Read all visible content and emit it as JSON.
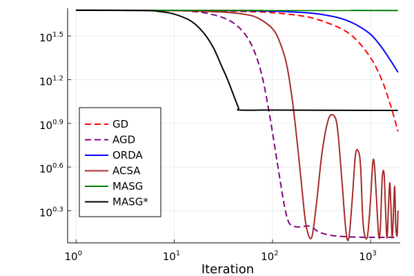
{
  "chart_data": {
    "type": "line",
    "title": "",
    "xlabel": "Iteration",
    "ylabel": "",
    "xscale": "log",
    "yscale": "log",
    "xlim": [
      0.82,
      2000
    ],
    "ylim": [
      1.2,
      49.0
    ],
    "grid": true,
    "legend_position": "bottom-left",
    "x_ticks": [
      {
        "base": "10",
        "exp": "0",
        "value": 1
      },
      {
        "base": "10",
        "exp": "1",
        "value": 10
      },
      {
        "base": "10",
        "exp": "2",
        "value": 100
      },
      {
        "base": "10",
        "exp": "3",
        "value": 1000
      }
    ],
    "y_ticks": [
      {
        "base": "10",
        "exp": "0.3",
        "value": 1.995
      },
      {
        "base": "10",
        "exp": "0.6",
        "value": 3.981
      },
      {
        "base": "10",
        "exp": "0.9",
        "value": 7.943
      },
      {
        "base": "10",
        "exp": "1.2",
        "value": 15.85
      },
      {
        "base": "10",
        "exp": "1.5",
        "value": 31.62
      }
    ],
    "series": [
      {
        "name": "GD",
        "color": "#ff0000",
        "dash": "dashed",
        "x": [
          1,
          10,
          50,
          100,
          200,
          300,
          500,
          700,
          1000,
          1300,
          1600,
          1900
        ],
        "y": [
          47.5,
          47.3,
          46.6,
          45.7,
          43.4,
          40.7,
          35.5,
          30.2,
          22.4,
          15.8,
          10.5,
          7.0
        ]
      },
      {
        "name": "AGD",
        "color": "#800080",
        "dash": "dashed",
        "x": [
          1,
          10,
          15,
          20,
          30,
          40,
          50,
          60,
          70,
          80,
          90,
          100,
          110,
          120,
          130,
          140,
          150,
          170,
          200,
          230,
          260,
          300,
          400,
          600,
          1000,
          1900
        ],
        "y": [
          47.5,
          47.2,
          46.6,
          45.7,
          42.7,
          38.9,
          33.9,
          28.2,
          21.9,
          15.8,
          10.5,
          6.9,
          4.6,
          3.2,
          2.3,
          1.82,
          1.62,
          1.55,
          1.55,
          1.57,
          1.52,
          1.42,
          1.35,
          1.32,
          1.31,
          1.31
        ]
      },
      {
        "name": "ORDA",
        "color": "#0000ff",
        "dash": "solid",
        "x": [
          1,
          30,
          100,
          200,
          300,
          500,
          700,
          1000,
          1300,
          1600,
          1900
        ],
        "y": [
          47.5,
          47.3,
          46.8,
          45.9,
          44.7,
          41.7,
          38.0,
          32.4,
          26.3,
          21.4,
          17.8
        ]
      },
      {
        "name": "ACSA",
        "color": "#a52a2a",
        "dash": "solid",
        "x": [
          1,
          10,
          30,
          50,
          70,
          100,
          120,
          140,
          160,
          180,
          200,
          220,
          250,
          280,
          320,
          370,
          420,
          460,
          510,
          560,
          600,
          650,
          700,
          750,
          790,
          840,
          920,
          990,
          1050,
          1090,
          1140,
          1210,
          1260,
          1310,
          1370,
          1420,
          1470,
          1530,
          1570,
          1610,
          1660,
          1720,
          1760,
          1800,
          1860,
          1900
        ],
        "y": [
          47.5,
          47.2,
          46.2,
          44.7,
          42.2,
          35.5,
          28.2,
          19.9,
          11.2,
          5.6,
          2.8,
          1.58,
          1.3,
          2.2,
          5.0,
          8.4,
          9.0,
          7.3,
          3.2,
          1.45,
          1.3,
          2.4,
          4.8,
          5.1,
          4.0,
          1.6,
          1.3,
          2.2,
          4.2,
          4.2,
          2.6,
          1.32,
          1.6,
          3.3,
          3.6,
          2.0,
          1.3,
          2.4,
          3.1,
          2.1,
          1.3,
          2.2,
          2.9,
          1.6,
          1.35,
          2.0
        ]
      },
      {
        "name": "MASG",
        "color": "#008000",
        "dash": "solid",
        "x": [
          1,
          1900
        ],
        "y": [
          47.5,
          47.3
        ]
      },
      {
        "name": "MASG*",
        "color": "#000000",
        "dash": "solid",
        "x": [
          1,
          5,
          7,
          10,
          15,
          20,
          25,
          30,
          35,
          40,
          45,
          47,
          100,
          1000,
          1900
        ],
        "y": [
          47.5,
          47.3,
          46.6,
          44.7,
          39.8,
          33.1,
          26.3,
          20.0,
          15.8,
          12.5,
          10.2,
          9.8,
          9.8,
          9.75,
          9.75
        ]
      }
    ]
  }
}
